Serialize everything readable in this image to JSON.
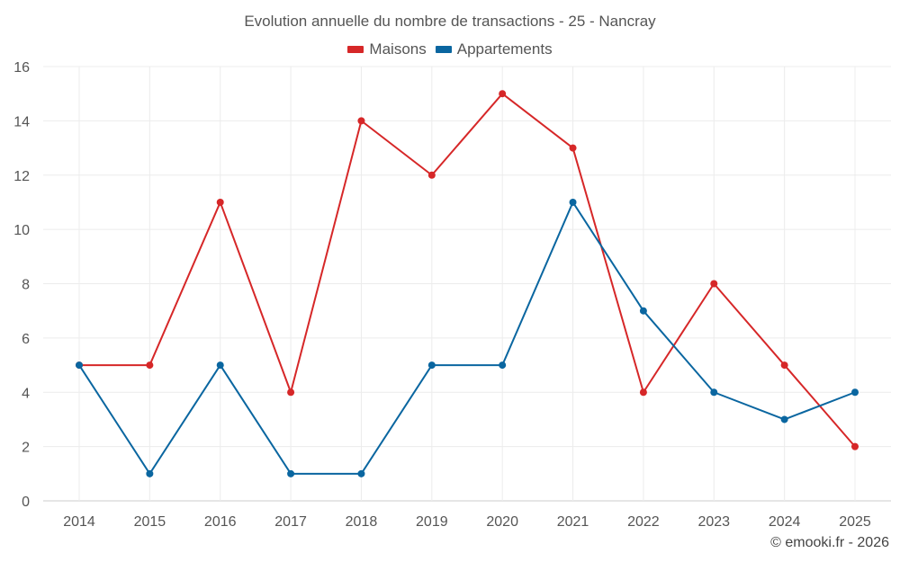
{
  "chart_data": {
    "type": "line",
    "title": "Evolution annuelle du nombre de transactions - 25 - Nancray",
    "categories": [
      "2014",
      "2015",
      "2016",
      "2017",
      "2018",
      "2019",
      "2020",
      "2021",
      "2022",
      "2023",
      "2024",
      "2025"
    ],
    "series": [
      {
        "name": "Maisons",
        "color": "#d62728",
        "values": [
          5,
          5,
          11,
          4,
          14,
          12,
          15,
          13,
          4,
          8,
          5,
          2
        ]
      },
      {
        "name": "Appartements",
        "color": "#0a66a0",
        "values": [
          5,
          1,
          5,
          1,
          1,
          5,
          5,
          11,
          7,
          4,
          3,
          4
        ]
      }
    ],
    "ylim": [
      0,
      16
    ],
    "yticks": [
      0,
      2,
      4,
      6,
      8,
      10,
      12,
      14,
      16
    ],
    "grid": true,
    "legend": "top-center"
  },
  "credit": "© emooki.fr - 2026"
}
